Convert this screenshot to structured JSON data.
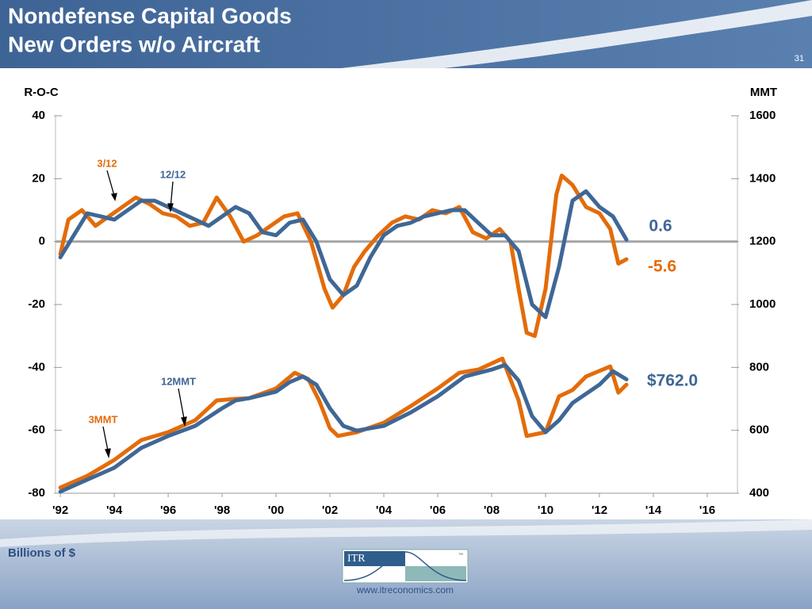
{
  "header": {
    "title_line1": "Nondefense Capital Goods",
    "title_line2": "New Orders w/o Aircraft",
    "page_number": "31"
  },
  "footer": {
    "units": "Billions of $",
    "logo": "ITR",
    "trademark": "™",
    "website": "www.itreconomics.com"
  },
  "chart_data": {
    "type": "line",
    "ylabel": "R-O-C",
    "y2label": "MMT",
    "xlim": [
      1991.82,
      2017.12
    ],
    "xticks": [
      {
        "value": 1992,
        "label": "'92"
      },
      {
        "value": 1994,
        "label": "'94"
      },
      {
        "value": 1996,
        "label": "'96"
      },
      {
        "value": 1998,
        "label": "'98"
      },
      {
        "value": 2000,
        "label": "'00"
      },
      {
        "value": 2002,
        "label": "'02"
      },
      {
        "value": 2004,
        "label": "'04"
      },
      {
        "value": 2006,
        "label": "'06"
      },
      {
        "value": 2008,
        "label": "'08"
      },
      {
        "value": 2010,
        "label": "'10"
      },
      {
        "value": 2012,
        "label": "'12"
      },
      {
        "value": 2014,
        "label": "'14"
      },
      {
        "value": 2016,
        "label": "'16"
      }
    ],
    "ylim": [
      -80,
      40
    ],
    "yticks": [
      -80,
      -60,
      -40,
      -20,
      0,
      20,
      40
    ],
    "y2lim": [
      400,
      1600
    ],
    "y2ticks": [
      400,
      600,
      800,
      1000,
      1200,
      1400,
      1600
    ],
    "zero_line": 0,
    "series": [
      {
        "name": "3/12",
        "color": "#e36c0a",
        "axis": "y",
        "x": [
          1992.0,
          1992.3,
          1992.8,
          1993.3,
          1993.8,
          1994.3,
          1994.8,
          1995.3,
          1995.8,
          1996.3,
          1996.8,
          1997.3,
          1997.8,
          1998.3,
          1998.8,
          1999.3,
          1999.8,
          2000.3,
          2000.8,
          2001.3,
          2001.8,
          2002.1,
          2002.5,
          2002.9,
          2003.3,
          2003.8,
          2004.3,
          2004.8,
          2005.3,
          2005.8,
          2006.3,
          2006.8,
          2007.3,
          2007.8,
          2008.3,
          2008.7,
          2009.0,
          2009.3,
          2009.6,
          2010.0,
          2010.4,
          2010.6,
          2011.0,
          2011.5,
          2012.0,
          2012.4,
          2012.7,
          2013.0
        ],
        "values": [
          -4,
          7,
          10,
          5,
          8,
          11,
          14,
          12,
          9,
          8,
          5,
          6,
          14,
          8,
          0,
          2,
          5,
          8,
          9,
          0,
          -15,
          -21,
          -17,
          -8,
          -3,
          2,
          6,
          8,
          7,
          10,
          9,
          11,
          3,
          1,
          4,
          0,
          -15,
          -29,
          -30,
          -15,
          15,
          21,
          18,
          11,
          9,
          4,
          -7,
          -5.6
        ]
      },
      {
        "name": "12/12",
        "color": "#3f6796",
        "axis": "y",
        "x": [
          1992.0,
          1992.5,
          1993.0,
          1993.5,
          1994.0,
          1994.5,
          1995.0,
          1995.5,
          1996.0,
          1996.5,
          1997.0,
          1997.5,
          1998.0,
          1998.5,
          1999.0,
          1999.5,
          2000.0,
          2000.5,
          2001.0,
          2001.5,
          2002.0,
          2002.5,
          2003.0,
          2003.5,
          2004.0,
          2004.5,
          2005.0,
          2005.5,
          2006.0,
          2006.5,
          2007.0,
          2007.5,
          2008.0,
          2008.5,
          2009.0,
          2009.5,
          2010.0,
          2010.5,
          2011.0,
          2011.5,
          2012.0,
          2012.5,
          2013.0
        ],
        "values": [
          -5,
          2,
          9,
          8,
          7,
          10,
          13,
          13,
          11,
          9,
          7,
          5,
          8,
          11,
          9,
          3,
          2,
          6,
          7,
          0,
          -12,
          -17,
          -14,
          -5,
          2,
          5,
          6,
          8,
          9,
          10,
          10,
          6,
          2,
          2,
          -3,
          -20,
          -24,
          -8,
          13,
          16,
          11,
          8,
          0.6
        ]
      },
      {
        "name": "3MMT",
        "color": "#e36c0a",
        "axis": "y2",
        "x": [
          1992.0,
          1993.0,
          1994.0,
          1995.0,
          1996.0,
          1997.0,
          1997.8,
          1998.5,
          1999.0,
          2000.0,
          2000.7,
          2001.2,
          2001.6,
          2002.0,
          2002.3,
          2003.0,
          2004.0,
          2005.0,
          2006.0,
          2006.8,
          2007.5,
          2008.4,
          2009.0,
          2009.3,
          2010.0,
          2010.5,
          2011.0,
          2011.5,
          2012.4,
          2012.7,
          2013.0
        ],
        "values": [
          418,
          455,
          506,
          569,
          594,
          632,
          695,
          700,
          702,
          733,
          783,
          763,
          695,
          607,
          582,
          594,
          624,
          677,
          733,
          783,
          793,
          828,
          695,
          582,
          594,
          708,
          728,
          771,
          803,
          720,
          745
        ]
      },
      {
        "name": "12MMT",
        "color": "#3f6796",
        "axis": "y2",
        "x": [
          1992.0,
          1993.0,
          1994.0,
          1995.0,
          1996.0,
          1997.0,
          1998.0,
          1998.5,
          1999.0,
          2000.0,
          2000.5,
          2001.0,
          2001.5,
          2002.0,
          2002.5,
          2003.0,
          2004.0,
          2005.0,
          2006.0,
          2007.0,
          2008.0,
          2008.5,
          2009.0,
          2009.5,
          2010.0,
          2010.5,
          2011.0,
          2012.0,
          2012.5,
          2013.0
        ],
        "values": [
          405,
          443,
          481,
          544,
          582,
          614,
          670,
          695,
          702,
          723,
          753,
          771,
          745,
          670,
          614,
          599,
          614,
          657,
          708,
          771,
          793,
          808,
          758,
          645,
          594,
          632,
          687,
          745,
          788,
          762
        ]
      }
    ],
    "annotations": [
      "0.6",
      "-5.6",
      "$762.0"
    ]
  }
}
